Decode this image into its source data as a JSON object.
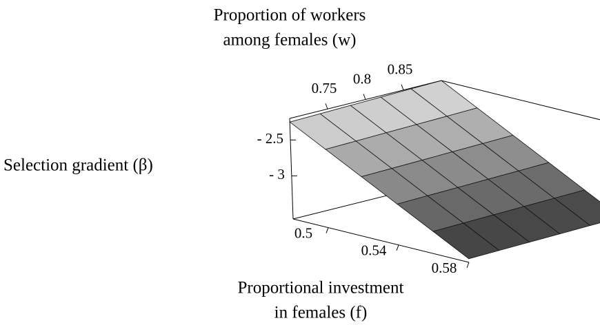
{
  "chart_data": {
    "type": "surface",
    "xlabel": [
      "Proportional investment",
      "in females (f)"
    ],
    "ylabel": [
      "Proportion of workers",
      "among females (w)"
    ],
    "zlabel": "Selection gradient (β)",
    "x": [
      0.48,
      0.5,
      0.52,
      0.54,
      0.56,
      0.58
    ],
    "y": [
      0.7,
      0.74,
      0.78,
      0.82,
      0.86,
      0.9
    ],
    "z": [
      [
        -2.25,
        -2.24,
        -2.23,
        -2.22,
        -2.21,
        -2.2
      ],
      [
        -2.51,
        -2.5,
        -2.49,
        -2.48,
        -2.47,
        -2.46
      ],
      [
        -2.77,
        -2.76,
        -2.75,
        -2.74,
        -2.73,
        -2.72
      ],
      [
        -3.03,
        -3.02,
        -3.01,
        -3.0,
        -2.99,
        -2.98
      ],
      [
        -3.29,
        -3.28,
        -3.27,
        -3.26,
        -3.25,
        -3.24
      ],
      [
        -3.55,
        -3.54,
        -3.53,
        -3.52,
        -3.51,
        -3.5
      ]
    ],
    "xlim": [
      0.48,
      0.58
    ],
    "ylim": [
      0.7,
      0.9
    ],
    "zlim": [
      -3.6,
      -2.2
    ],
    "xticks": [
      0.5,
      0.54,
      0.58
    ],
    "yticks": [
      0.75,
      0.8,
      0.85
    ],
    "zticks": [
      {
        "value": -2.5,
        "label": "- 2.5"
      },
      {
        "value": -3,
        "label": "- 3"
      }
    ],
    "color_high": "#e2e2e2",
    "color_low": "#2e2e2e"
  }
}
